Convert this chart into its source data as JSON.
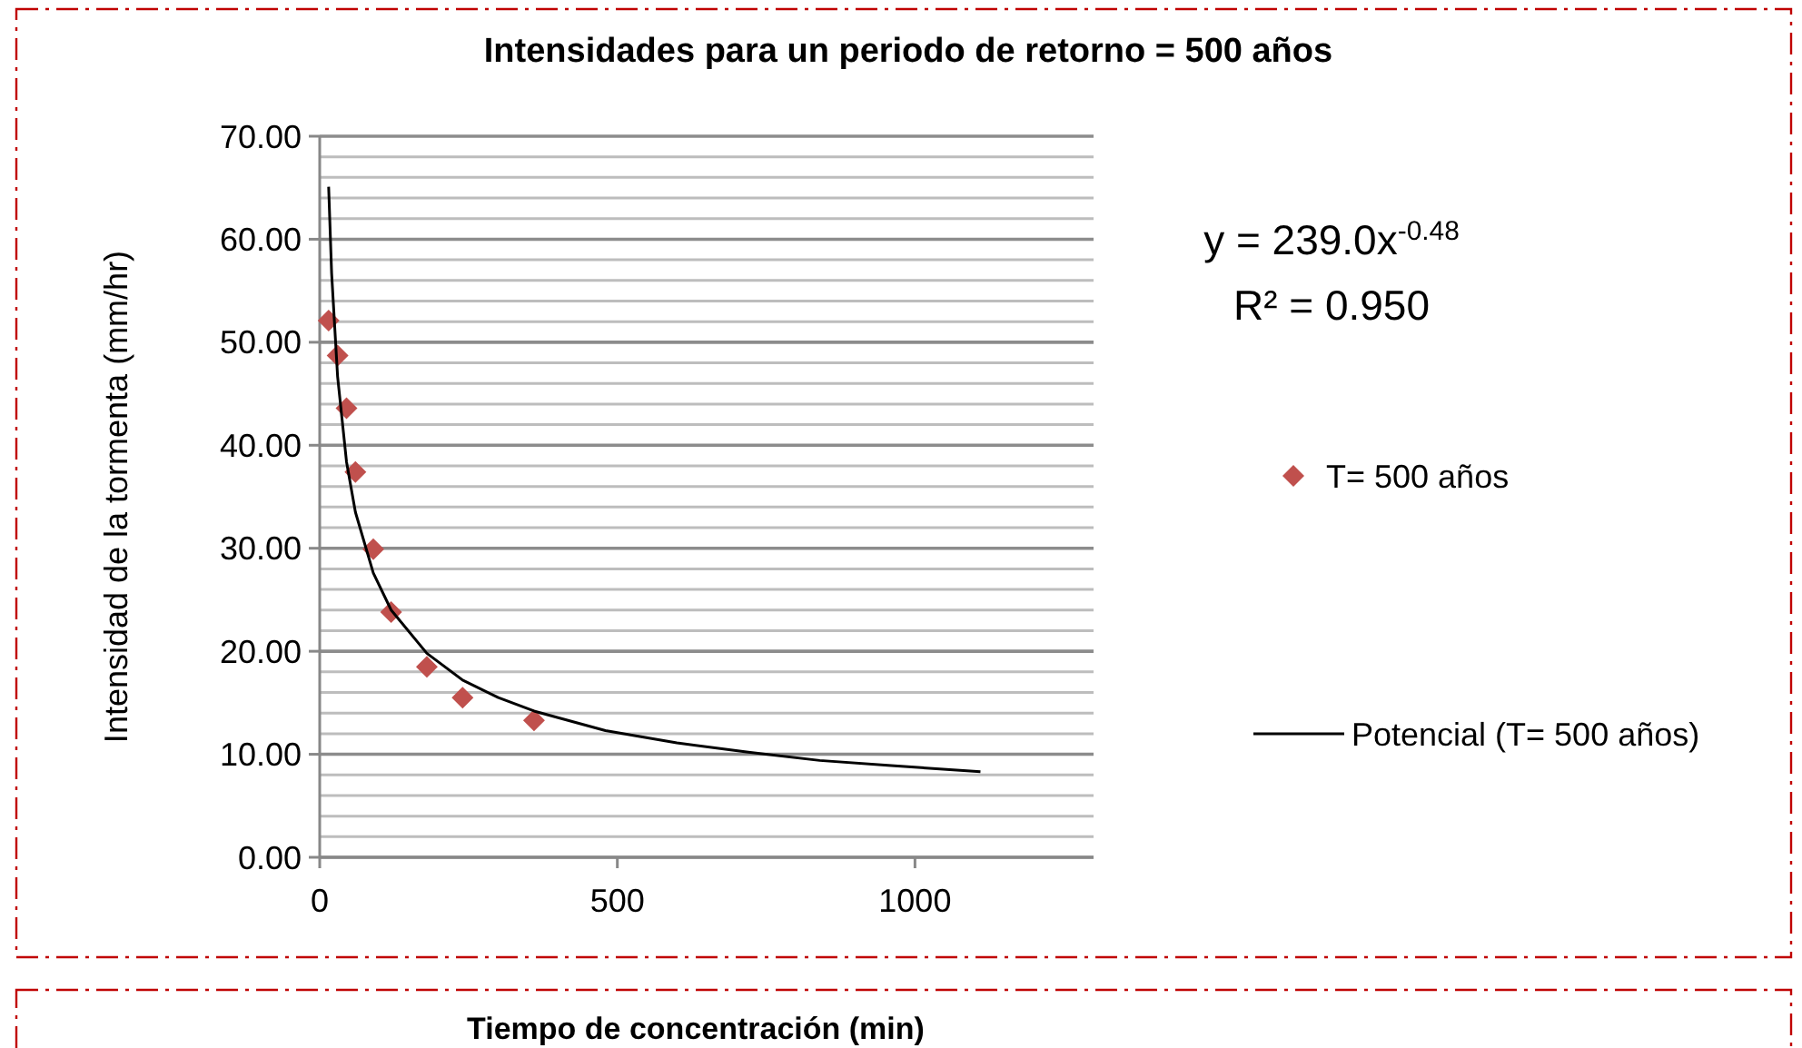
{
  "chart_data": {
    "type": "scatter",
    "title": "Intensidades para un periodo de retorno = 500  años",
    "xlabel": "Tiempo de concentración  (min)",
    "ylabel": "Intensidad de la tormenta  (mm/hr)",
    "x": [
      15,
      30,
      45,
      60,
      90,
      120,
      180,
      240,
      360
    ],
    "series": [
      {
        "name": "T= 500 años",
        "color": "#c0504d",
        "marker": "diamond",
        "values": [
          52.1,
          48.7,
          43.6,
          37.4,
          29.9,
          23.8,
          18.5,
          15.5,
          13.3
        ]
      },
      {
        "name": "Potencial (T= 500 años)",
        "color": "#000000",
        "type": "line",
        "marker": "none",
        "x": [
          15,
          20,
          30,
          45,
          60,
          90,
          120,
          180,
          240,
          300,
          360,
          480,
          600,
          720,
          840,
          960,
          1110
        ],
        "values": [
          65.1,
          56.7,
          46.7,
          38.4,
          33.5,
          27.6,
          24.0,
          19.8,
          17.2,
          15.5,
          14.2,
          12.3,
          11.1,
          10.2,
          9.4,
          8.9,
          8.3
        ]
      }
    ],
    "annotations": [
      "y = 239.0x$^{-0.48}$",
      "R² = 0.950"
    ],
    "xlim": [
      0,
      1300
    ],
    "xticks": [
      0,
      500,
      1000
    ],
    "ylim": [
      0,
      70
    ],
    "yticks": [
      {
        "value": 0,
        "label": "0.00"
      },
      {
        "value": 2,
        "label": null
      },
      {
        "value": 4,
        "label": null
      },
      {
        "value": 6,
        "label": null
      },
      {
        "value": 8,
        "label": null
      },
      {
        "value": 10,
        "label": "10.00"
      },
      {
        "value": 12,
        "label": null
      },
      {
        "value": 14,
        "label": null
      },
      {
        "value": 16,
        "label": null
      },
      {
        "value": 18,
        "label": null
      },
      {
        "value": 20,
        "label": "20.00"
      },
      {
        "value": 22,
        "label": null
      },
      {
        "value": 24,
        "label": null
      },
      {
        "value": 26,
        "label": null
      },
      {
        "value": 28,
        "label": null
      },
      {
        "value": 30,
        "label": "30.00"
      },
      {
        "value": 32,
        "label": null
      },
      {
        "value": 34,
        "label": null
      },
      {
        "value": 36,
        "label": null
      },
      {
        "value": 38,
        "label": null
      },
      {
        "value": 40,
        "label": "40.00"
      },
      {
        "value": 42,
        "label": null
      },
      {
        "value": 44,
        "label": null
      },
      {
        "value": 46,
        "label": null
      },
      {
        "value": 48,
        "label": null
      },
      {
        "value": 50,
        "label": "50.00"
      },
      {
        "value": 52,
        "label": null
      },
      {
        "value": 54,
        "label": null
      },
      {
        "value": 56,
        "label": null
      },
      {
        "value": 58,
        "label": null
      },
      {
        "value": 60,
        "label": "60.00"
      },
      {
        "value": 62,
        "label": null
      },
      {
        "value": 64,
        "label": null
      },
      {
        "value": 66,
        "label": null
      },
      {
        "value": 68,
        "label": null
      },
      {
        "value": 70,
        "label": "70.00"
      }
    ],
    "grid": "y",
    "legend": "right"
  }
}
